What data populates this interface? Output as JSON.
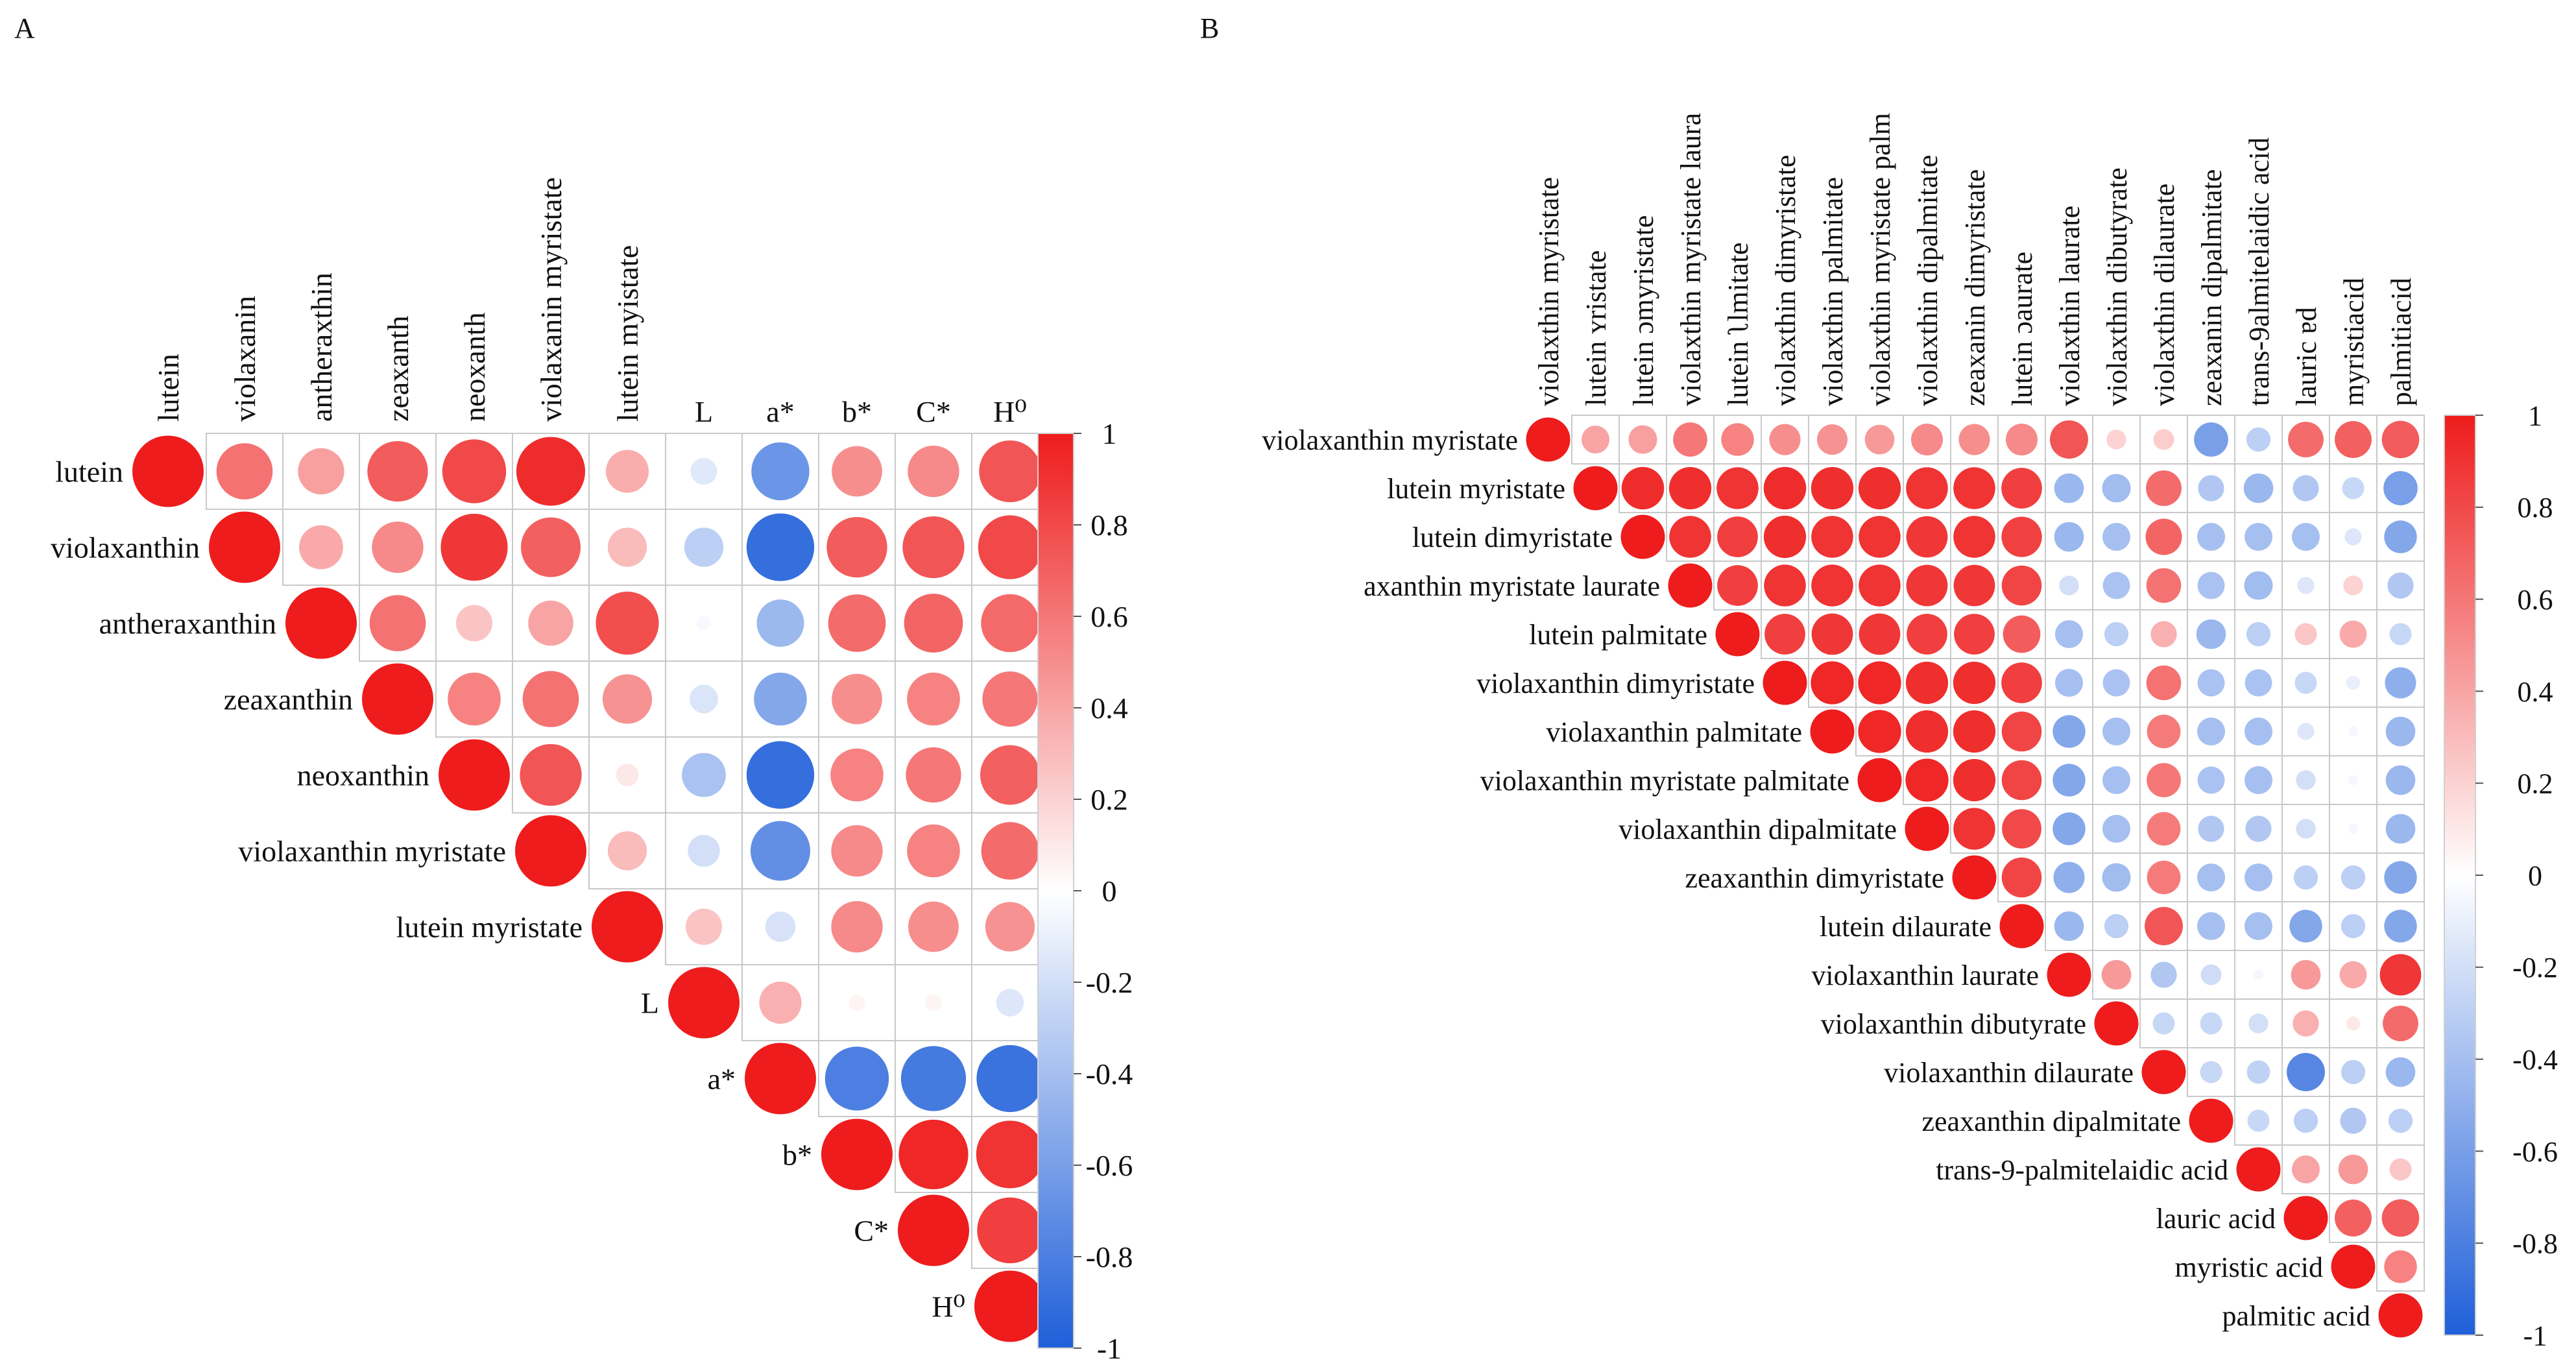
{
  "chart_data": [
    {
      "type": "heatmap",
      "panel_label": "A",
      "row_labels": [
        "lutein",
        "violaxanthin",
        "antheraxanthin",
        "zeaxanthin",
        "neoxanthin",
        "violaxanthin myristate",
        "lutein myristate",
        "L",
        "a*",
        "b*",
        "C*",
        "H⁰"
      ],
      "col_labels": [
        "lutein",
        "violaxanin",
        "antheraxthin",
        "zeaxanth",
        "neoxanth",
        "violaxanin myristate",
        "lutein myistate",
        "L",
        "a*",
        "b*",
        "C*",
        "H⁰"
      ],
      "values": [
        [
          1.0,
          0.62,
          0.42,
          0.72,
          0.8,
          0.93,
          0.36,
          -0.14,
          -0.66,
          0.5,
          0.52,
          0.75
        ],
        [
          null,
          1.0,
          0.38,
          0.52,
          0.88,
          0.7,
          0.3,
          -0.3,
          -0.9,
          0.72,
          0.75,
          0.8
        ],
        [
          null,
          null,
          1.0,
          0.62,
          0.26,
          0.4,
          0.78,
          -0.04,
          -0.44,
          0.65,
          0.68,
          0.66
        ],
        [
          null,
          null,
          null,
          1.0,
          0.55,
          0.62,
          0.48,
          -0.16,
          -0.55,
          0.5,
          0.55,
          0.6
        ],
        [
          null,
          null,
          null,
          null,
          1.0,
          0.75,
          0.1,
          -0.38,
          -0.9,
          0.55,
          0.6,
          0.7
        ],
        [
          null,
          null,
          null,
          null,
          null,
          1.0,
          0.3,
          -0.2,
          -0.7,
          0.52,
          0.55,
          0.65
        ],
        [
          null,
          null,
          null,
          null,
          null,
          null,
          1.0,
          0.26,
          -0.18,
          0.52,
          0.5,
          0.48
        ],
        [
          null,
          null,
          null,
          null,
          null,
          null,
          null,
          1.0,
          0.35,
          0.05,
          0.05,
          -0.15
        ],
        [
          null,
          null,
          null,
          null,
          null,
          null,
          null,
          null,
          1.0,
          -0.8,
          -0.83,
          -0.88
        ],
        [
          null,
          null,
          null,
          null,
          null,
          null,
          null,
          null,
          null,
          1.0,
          0.95,
          0.9
        ],
        [
          null,
          null,
          null,
          null,
          null,
          null,
          null,
          null,
          null,
          null,
          1.0,
          0.85
        ],
        [
          null,
          null,
          null,
          null,
          null,
          null,
          null,
          null,
          null,
          null,
          null,
          1.0
        ]
      ],
      "colorbar": {
        "min": -1,
        "max": 1,
        "ticks": [
          "1",
          "0.8",
          "0.6",
          "0.4",
          "0.2",
          "0",
          "-0.2",
          "-0.4",
          "-0.6",
          "-0.8",
          "-1"
        ],
        "low_color": "#1f5fd9",
        "mid_color": "#ffffff",
        "high_color": "#ee1c1c"
      }
    },
    {
      "type": "heatmap",
      "panel_label": "B",
      "row_labels": [
        "violaxanthin myristate",
        "lutein myristate",
        "lutein dimyristate",
        "axanthin myristate laurate",
        "lutein palmitate",
        "violaxanthin dimyristate",
        "violaxanthin palmitate",
        "violaxanthin myristate palmitate",
        "violaxanthin dipalmitate",
        "zeaxanthin dimyristate",
        "lutein dilaurate",
        "violaxanthin laurate",
        "violaxanthin dibutyrate",
        "violaxanthin dilaurate",
        "zeaxanthin dipalmitate",
        "trans-9-palmitelaidic acid",
        "lauric acid",
        "myristic acid",
        "palmitic acid"
      ],
      "col_labels": [
        "violaxthin myristate",
        "lutein ʏristate",
        "lutein ɔmyristate",
        "violaxthin myristate laura",
        "lutein ʅlmitate",
        "violaxthin dimyristate",
        "violaxthin palmitate",
        "violaxthin myristate palm",
        "violaxthin dipalmitate",
        "zeaxanin dimyristate",
        "lutein ɔaurate",
        "violaxthin laurate",
        "violaxthin dibutyrate",
        "violaxthin dilaurate",
        "zeaxanin dipalmitate",
        "trans-9almitelaidic acid",
        "lauric ɐd",
        "myristiacid",
        "palmitiacid"
      ],
      "values": [
        [
          1.0,
          0.4,
          0.42,
          0.6,
          0.55,
          0.5,
          0.48,
          0.45,
          0.52,
          0.5,
          0.52,
          0.75,
          0.2,
          0.22,
          -0.6,
          -0.3,
          0.65,
          0.7,
          0.72
        ],
        [
          null,
          1.0,
          0.93,
          0.92,
          0.9,
          0.93,
          0.92,
          0.92,
          0.9,
          0.9,
          0.85,
          -0.45,
          -0.42,
          0.65,
          -0.35,
          -0.45,
          -0.35,
          -0.25,
          -0.6
        ],
        [
          null,
          null,
          1.0,
          0.9,
          0.85,
          0.92,
          0.9,
          0.9,
          0.88,
          0.9,
          0.84,
          -0.45,
          -0.4,
          0.68,
          -0.4,
          -0.4,
          -0.4,
          -0.15,
          -0.55
        ],
        [
          null,
          null,
          null,
          1.0,
          0.85,
          0.9,
          0.9,
          0.9,
          0.88,
          0.88,
          0.82,
          -0.2,
          -0.38,
          0.62,
          -0.38,
          -0.42,
          -0.15,
          0.2,
          -0.35
        ],
        [
          null,
          null,
          null,
          null,
          1.0,
          0.85,
          0.88,
          0.88,
          0.85,
          0.85,
          0.72,
          -0.4,
          -0.3,
          0.35,
          -0.45,
          -0.3,
          0.25,
          0.38,
          -0.25
        ],
        [
          null,
          null,
          null,
          null,
          null,
          1.0,
          0.95,
          0.95,
          0.92,
          0.92,
          0.85,
          -0.4,
          -0.38,
          0.62,
          -0.38,
          -0.38,
          -0.25,
          -0.1,
          -0.5
        ],
        [
          null,
          null,
          null,
          null,
          null,
          null,
          1.0,
          0.95,
          0.92,
          0.92,
          0.82,
          -0.55,
          -0.4,
          0.58,
          -0.4,
          -0.4,
          -0.15,
          -0.05,
          -0.45
        ],
        [
          null,
          null,
          null,
          null,
          null,
          null,
          null,
          1.0,
          0.95,
          0.92,
          0.82,
          -0.55,
          -0.4,
          0.6,
          -0.38,
          -0.4,
          -0.2,
          -0.05,
          -0.45
        ],
        [
          null,
          null,
          null,
          null,
          null,
          null,
          null,
          null,
          1.0,
          0.9,
          0.8,
          -0.55,
          -0.4,
          0.58,
          -0.35,
          -0.35,
          -0.2,
          -0.05,
          -0.45
        ],
        [
          null,
          null,
          null,
          null,
          null,
          null,
          null,
          null,
          null,
          1.0,
          0.82,
          -0.5,
          -0.42,
          0.58,
          -0.4,
          -0.4,
          -0.3,
          -0.3,
          -0.55
        ],
        [
          null,
          null,
          null,
          null,
          null,
          null,
          null,
          null,
          null,
          null,
          1.0,
          -0.45,
          -0.3,
          0.75,
          -0.4,
          -0.4,
          -0.55,
          -0.3,
          -0.55
        ],
        [
          null,
          null,
          null,
          null,
          null,
          null,
          null,
          null,
          null,
          null,
          null,
          1.0,
          0.45,
          -0.35,
          -0.22,
          -0.05,
          0.45,
          0.38,
          0.88
        ],
        [
          null,
          null,
          null,
          null,
          null,
          null,
          null,
          null,
          null,
          null,
          null,
          null,
          1.0,
          -0.25,
          -0.25,
          -0.2,
          0.35,
          0.1,
          0.65
        ],
        [
          null,
          null,
          null,
          null,
          null,
          null,
          null,
          null,
          null,
          null,
          null,
          null,
          null,
          1.0,
          -0.25,
          -0.28,
          -0.75,
          -0.3,
          -0.45
        ],
        [
          null,
          null,
          null,
          null,
          null,
          null,
          null,
          null,
          null,
          null,
          null,
          null,
          null,
          null,
          1.0,
          -0.25,
          -0.3,
          -0.35,
          -0.3
        ],
        [
          null,
          null,
          null,
          null,
          null,
          null,
          null,
          null,
          null,
          null,
          null,
          null,
          null,
          null,
          null,
          1.0,
          0.4,
          0.45,
          0.25
        ],
        [
          null,
          null,
          null,
          null,
          null,
          null,
          null,
          null,
          null,
          null,
          null,
          null,
          null,
          null,
          null,
          null,
          1.0,
          0.7,
          0.72
        ],
        [
          null,
          null,
          null,
          null,
          null,
          null,
          null,
          null,
          null,
          null,
          null,
          null,
          null,
          null,
          null,
          null,
          null,
          1.0,
          0.55
        ],
        [
          null,
          null,
          null,
          null,
          null,
          null,
          null,
          null,
          null,
          null,
          null,
          null,
          null,
          null,
          null,
          null,
          null,
          null,
          1.0
        ]
      ],
      "colorbar": {
        "min": -1,
        "max": 1,
        "ticks": [
          "1",
          "0.8",
          "0.6",
          "0.4",
          "0.2",
          "0",
          "-0.2",
          "-0.4",
          "-0.6",
          "-0.8",
          "-1"
        ],
        "low_color": "#1f5fd9",
        "mid_color": "#ffffff",
        "high_color": "#ee1c1c"
      }
    }
  ]
}
